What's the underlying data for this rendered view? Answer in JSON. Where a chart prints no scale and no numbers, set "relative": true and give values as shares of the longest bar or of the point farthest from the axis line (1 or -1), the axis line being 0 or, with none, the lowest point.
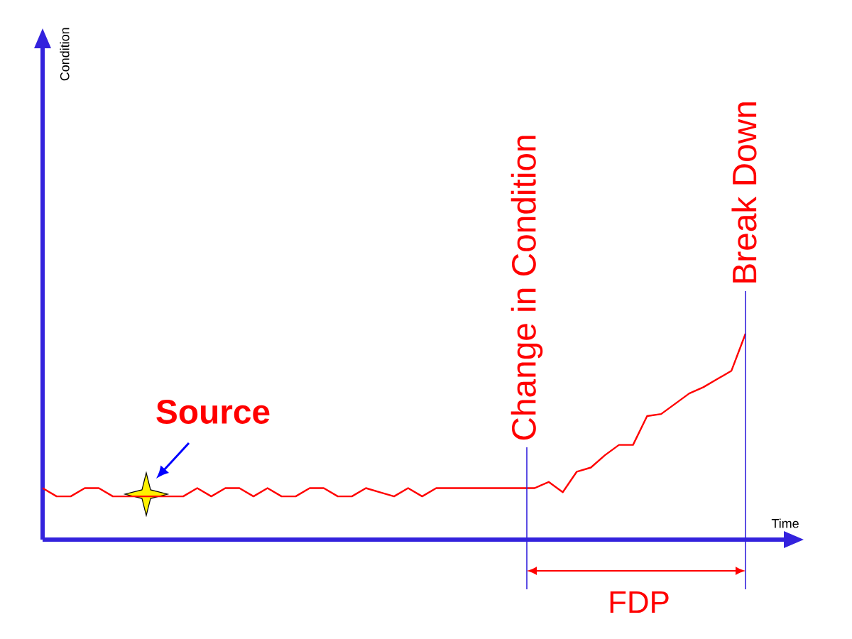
{
  "chart_data": {
    "type": "line",
    "relative": true,
    "xlabel": "Time",
    "marker": "none",
    "categories": [
      null,
      null,
      null,
      null,
      null,
      null,
      null,
      null,
      null,
      null,
      null,
      null,
      null,
      null,
      null,
      null,
      null,
      null,
      null,
      null,
      null,
      null,
      null,
      null,
      null,
      null,
      null,
      null,
      null,
      null,
      null,
      null,
      null,
      null,
      null,
      null,
      null,
      null,
      null,
      null,
      null,
      null,
      null,
      null,
      null,
      null,
      null,
      null,
      null,
      null,
      null
    ],
    "series": [
      {
        "color": "#ff0000",
        "values": [
          0.25,
          0.21,
          0.21,
          0.25,
          0.25,
          0.21,
          0.21,
          0.21,
          0.21,
          0.21,
          0.21,
          0.25,
          0.21,
          0.25,
          0.25,
          0.21,
          0.25,
          0.21,
          0.21,
          0.25,
          0.25,
          0.21,
          0.21,
          0.25,
          0.23,
          0.21,
          0.25,
          0.21,
          0.25,
          0.25,
          0.25,
          0.25,
          0.25,
          0.25,
          0.25,
          0.25,
          0.28,
          0.23,
          0.33,
          0.35,
          0.41,
          0.46,
          0.46,
          0.6,
          0.61,
          0.66,
          0.71,
          0.74,
          0.78,
          0.82,
          1
        ]
      }
    ],
    "annotations": [
      "Source",
      "Change in Condition",
      "Break Down",
      "FDP",
      "Condition"
    ]
  }
}
